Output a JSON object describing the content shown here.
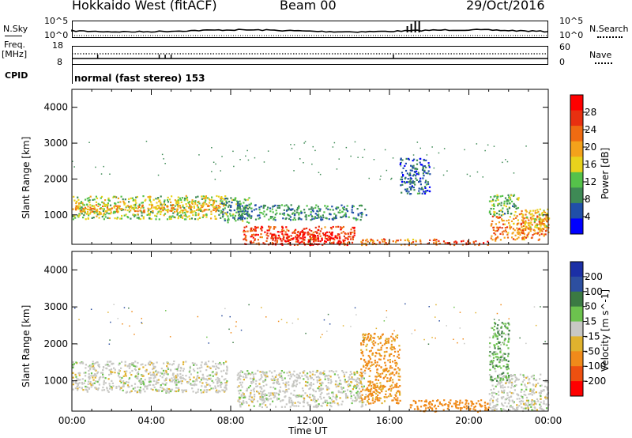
{
  "header": {
    "site": "Hokkaido West (fitACF)",
    "beam": "Beam 00",
    "date": "29/Oct/2016"
  },
  "top_panels": {
    "nsky_label": "N.Sky",
    "nsearch_label": "N.Search",
    "noise_ticks": [
      "10^5",
      "10^0"
    ],
    "freq_label": "Freq.",
    "freq_unit": "[MHz]",
    "freq_ticks": [
      "18",
      "8"
    ],
    "nave_label": "Nave",
    "nave_ticks": [
      "60",
      "0"
    ],
    "cpid_label": "CPID",
    "cpid_text": "normal (fast stereo) 153"
  },
  "x_axis": {
    "label": "Time UT",
    "ticks": [
      "00:00",
      "04:00",
      "08:00",
      "12:00",
      "16:00",
      "20:00",
      "00:00"
    ]
  },
  "colors": {
    "power": [
      "#0000ff",
      "#204fa8",
      "#3e8a55",
      "#55c24a",
      "#e8d21c",
      "#f3a21b",
      "#ef6b12",
      "#e83010",
      "#ff0000"
    ],
    "velocity": [
      "#1b2fa6",
      "#2d4fa0",
      "#3b7a43",
      "#6cc24e",
      "#c8c8c4",
      "#e0b22e",
      "#f08a1a",
      "#ee5010",
      "#ff0000"
    ]
  },
  "chart_data": [
    {
      "type": "heatmap",
      "name": "Power",
      "ylabel": "Slant Range [km]",
      "xlabel": "",
      "ylim": [
        180,
        4500
      ],
      "yticks": [
        1000,
        2000,
        3000,
        4000
      ],
      "xlim_hours": [
        0,
        24
      ],
      "colorbar": {
        "label": "Power [dB]",
        "ticks": [
          4,
          8,
          12,
          16,
          20,
          24,
          28
        ],
        "range": [
          0,
          32
        ]
      },
      "regions": [
        {
          "t": [
            0.0,
            7.8
          ],
          "r": [
            900,
            1550
          ],
          "value": 14
        },
        {
          "t": [
            0.0,
            7.8
          ],
          "r": [
            1100,
            1300
          ],
          "value": 20
        },
        {
          "t": [
            7.5,
            9.0
          ],
          "r": [
            800,
            1500
          ],
          "value": 10
        },
        {
          "t": [
            8.3,
            14.8
          ],
          "r": [
            880,
            1300
          ],
          "value": 9
        },
        {
          "t": [
            8.6,
            14.2
          ],
          "r": [
            180,
            700
          ],
          "value": 26
        },
        {
          "t": [
            10.0,
            13.5
          ],
          "r": [
            180,
            500
          ],
          "value": 29
        },
        {
          "t": [
            14.5,
            18.5
          ],
          "r": [
            180,
            350
          ],
          "value": 22
        },
        {
          "t": [
            18.5,
            21.0
          ],
          "r": [
            180,
            300
          ],
          "value": 26
        },
        {
          "t": [
            21.0,
            24.0
          ],
          "r": [
            300,
            1000
          ],
          "value": 22
        },
        {
          "t": [
            21.0,
            22.5
          ],
          "r": [
            1000,
            1600
          ],
          "value": 12
        },
        {
          "t": [
            22.5,
            24.0
          ],
          "r": [
            600,
            1200
          ],
          "value": 18
        },
        {
          "t": [
            16.5,
            18.0
          ],
          "r": [
            1600,
            2600
          ],
          "value": 6
        }
      ]
    },
    {
      "type": "heatmap",
      "name": "Velocity",
      "ylabel": "Slant Range [km]",
      "xlabel": "Time UT",
      "ylim": [
        180,
        4500
      ],
      "yticks": [
        1000,
        2000,
        3000,
        4000
      ],
      "xlim_hours": [
        0,
        24
      ],
      "colorbar": {
        "label": "Velocity [m s^-1]",
        "ticks": [
          200,
          100,
          50,
          15,
          -15,
          -50,
          -100,
          -200
        ]
      },
      "regions": [
        {
          "t": [
            0.0,
            7.8
          ],
          "r": [
            700,
            1550
          ],
          "value": 0
        },
        {
          "t": [
            8.3,
            14.8
          ],
          "r": [
            300,
            1300
          ],
          "value": 0
        },
        {
          "t": [
            14.5,
            16.5
          ],
          "r": [
            400,
            2300
          ],
          "value": -60
        },
        {
          "t": [
            17.0,
            21.0
          ],
          "r": [
            180,
            500
          ],
          "value": -70
        },
        {
          "t": [
            21.0,
            24.0
          ],
          "r": [
            200,
            1200
          ],
          "value": 0
        },
        {
          "t": [
            21.0,
            22.0
          ],
          "r": [
            1000,
            2600
          ],
          "value": 30
        }
      ]
    }
  ]
}
